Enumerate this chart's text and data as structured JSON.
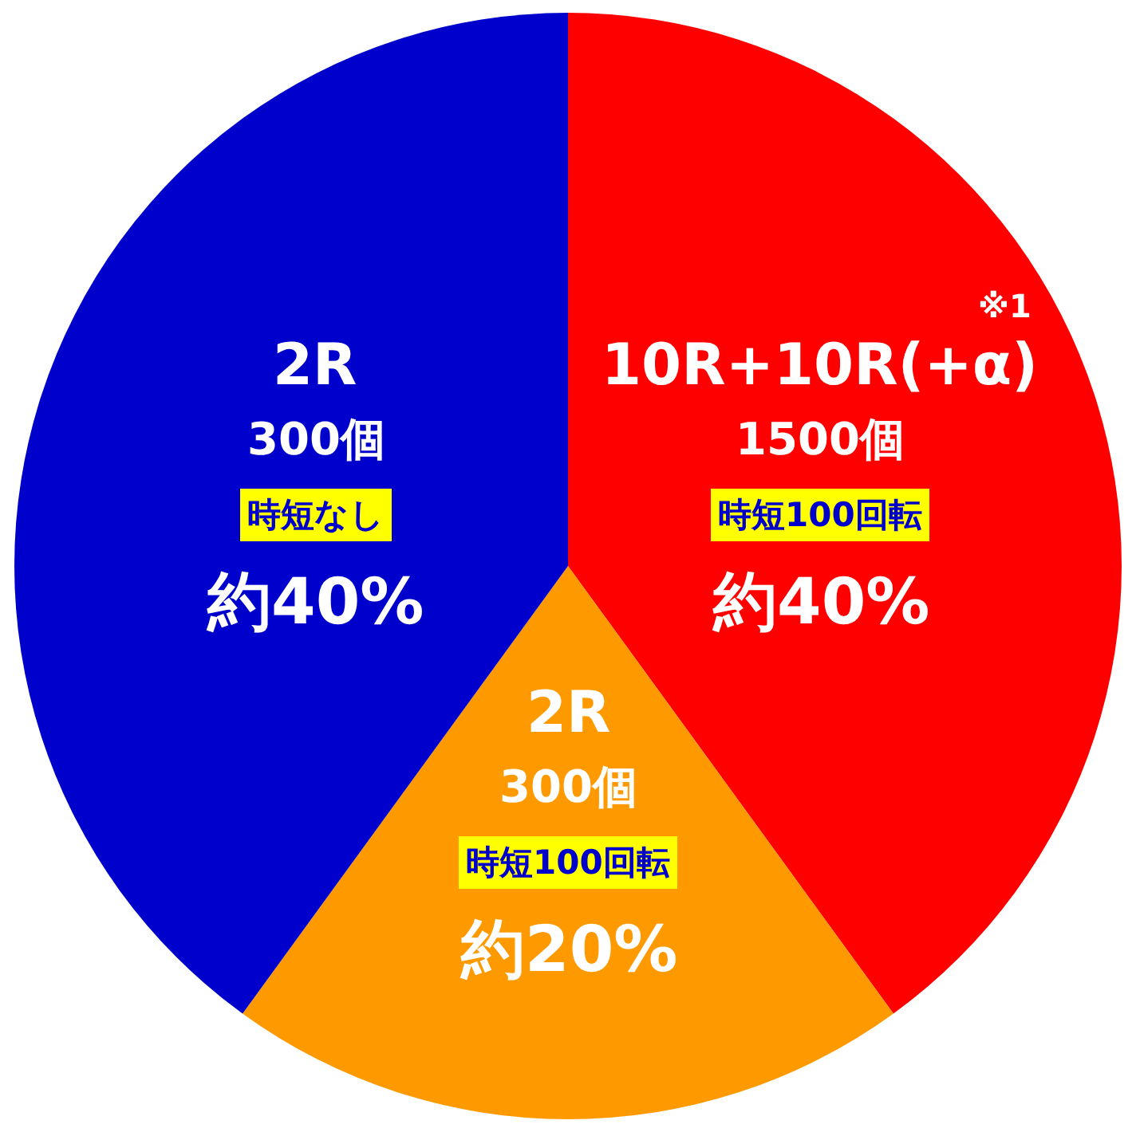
{
  "chart_data": {
    "type": "pie",
    "categories": [
      "10R+10R(+α)",
      "2R",
      "2R"
    ],
    "values": [
      40,
      20,
      40
    ],
    "colors": [
      "#ff0000",
      "#ff9900",
      "#0000cc"
    ],
    "value_labels": [
      "約40%",
      "約20%",
      "約40%"
    ],
    "annotations": [
      "1500個",
      "時短100回転",
      "300個",
      "時短100回転",
      "300個",
      "時短なし",
      "※1"
    ]
  }
}
